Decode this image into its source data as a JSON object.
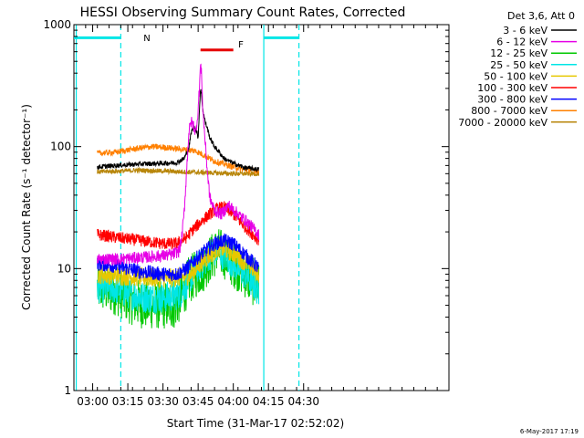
{
  "chart_data": {
    "type": "line",
    "title": "HESSI Observing Summary Count Rates, Corrected",
    "xlabel": "Start Time (31-Mar-17 02:52:02)",
    "ylabel": "Corrected Count Rate (s⁻¹ detector⁻¹)",
    "y_scale": "log",
    "ylim": [
      1,
      1000
    ],
    "y_ticks": [
      1,
      10,
      100,
      1000
    ],
    "y_tick_labels": [
      "1",
      "10",
      "100",
      "1000"
    ],
    "x_unit": "minutes",
    "xlim": [
      172,
      332
    ],
    "x_ticks": [
      180,
      195,
      210,
      225,
      240,
      255,
      270
    ],
    "x_tick_labels": [
      "03:00",
      "03:15",
      "03:30",
      "03:45",
      "04:00",
      "04:15",
      "04:30"
    ],
    "legend_title": "Det 3,6, Att 0",
    "legend_position": "right",
    "series": [
      {
        "name": "3 - 6 keV",
        "color": "#000000",
        "noise": 0.02,
        "points": [
          [
            182,
            68
          ],
          [
            190,
            70
          ],
          [
            200,
            72
          ],
          [
            210,
            73
          ],
          [
            216,
            74
          ],
          [
            219,
            80
          ],
          [
            221,
            96
          ],
          [
            222,
            130
          ],
          [
            223,
            145
          ],
          [
            224,
            140
          ],
          [
            225,
            118
          ],
          [
            225.5,
            190
          ],
          [
            226,
            300
          ],
          [
            226.5,
            260
          ],
          [
            227,
            200
          ],
          [
            228,
            160
          ],
          [
            229,
            140
          ],
          [
            230,
            118
          ],
          [
            232,
            100
          ],
          [
            234,
            90
          ],
          [
            236,
            80
          ],
          [
            240,
            73
          ],
          [
            245,
            67
          ],
          [
            251,
            65
          ]
        ]
      },
      {
        "name": "6 - 12 keV",
        "color": "#e600e6",
        "noise": 0.05,
        "points": [
          [
            182,
            12
          ],
          [
            192,
            12
          ],
          [
            205,
            12.5
          ],
          [
            214,
            13
          ],
          [
            217,
            14
          ],
          [
            218,
            18
          ],
          [
            219,
            28
          ],
          [
            220,
            60
          ],
          [
            221,
            130
          ],
          [
            222,
            160
          ],
          [
            223,
            150
          ],
          [
            224,
            130
          ],
          [
            225,
            200
          ],
          [
            225.5,
            300
          ],
          [
            226,
            470
          ],
          [
            226.5,
            380
          ],
          [
            227,
            200
          ],
          [
            228,
            110
          ],
          [
            229,
            60
          ],
          [
            230,
            38
          ],
          [
            232,
            30
          ],
          [
            235,
            28
          ],
          [
            238,
            33
          ],
          [
            242,
            28
          ],
          [
            246,
            24
          ],
          [
            251,
            19
          ]
        ]
      },
      {
        "name": "12 - 25 keV",
        "color": "#00c800",
        "noise": 0.2,
        "points": [
          [
            182,
            7
          ],
          [
            190,
            6.5
          ],
          [
            196,
            5.5
          ],
          [
            202,
            5
          ],
          [
            210,
            5
          ],
          [
            215,
            5
          ],
          [
            218,
            6
          ],
          [
            221,
            8
          ],
          [
            224,
            9
          ],
          [
            227,
            10
          ],
          [
            230,
            12
          ],
          [
            233,
            14
          ],
          [
            236,
            13
          ],
          [
            240,
            11
          ],
          [
            245,
            9
          ],
          [
            251,
            7
          ]
        ]
      },
      {
        "name": "25 - 50 keV",
        "color": "#00e6e6",
        "noise": 0.13,
        "points": [
          [
            182,
            7
          ],
          [
            190,
            6.8
          ],
          [
            196,
            6.2
          ],
          [
            202,
            5.8
          ],
          [
            210,
            5.8
          ],
          [
            215,
            6
          ],
          [
            218,
            6.5
          ],
          [
            221,
            8
          ],
          [
            224,
            10
          ],
          [
            227,
            11
          ],
          [
            230,
            13
          ],
          [
            233,
            14
          ],
          [
            236,
            13
          ],
          [
            240,
            11
          ],
          [
            245,
            9
          ],
          [
            251,
            6.5
          ]
        ]
      },
      {
        "name": "50 - 100 keV",
        "color": "#e6c800",
        "noise": 0.08,
        "points": [
          [
            182,
            9
          ],
          [
            190,
            8.8
          ],
          [
            200,
            8.5
          ],
          [
            210,
            8.3
          ],
          [
            218,
            8.5
          ],
          [
            222,
            9
          ],
          [
            226,
            11
          ],
          [
            230,
            13
          ],
          [
            234,
            15
          ],
          [
            238,
            14
          ],
          [
            242,
            12.5
          ],
          [
            246,
            11
          ],
          [
            251,
            9
          ]
        ]
      },
      {
        "name": "100 - 300 keV",
        "color": "#ff0000",
        "noise": 0.05,
        "points": [
          [
            182,
            19
          ],
          [
            190,
            18
          ],
          [
            200,
            17
          ],
          [
            210,
            16
          ],
          [
            216,
            16
          ],
          [
            220,
            18
          ],
          [
            222,
            20
          ],
          [
            224,
            22
          ],
          [
            227,
            25
          ],
          [
            230,
            28
          ],
          [
            233,
            31
          ],
          [
            236,
            32
          ],
          [
            240,
            28
          ],
          [
            245,
            22
          ],
          [
            251,
            17
          ]
        ]
      },
      {
        "name": "300 - 800 keV",
        "color": "#0000ff",
        "noise": 0.06,
        "points": [
          [
            182,
            11
          ],
          [
            190,
            10.5
          ],
          [
            200,
            9.5
          ],
          [
            210,
            9
          ],
          [
            216,
            9
          ],
          [
            220,
            10
          ],
          [
            224,
            12
          ],
          [
            228,
            14
          ],
          [
            232,
            16
          ],
          [
            236,
            17
          ],
          [
            240,
            16
          ],
          [
            245,
            13
          ],
          [
            251,
            10
          ]
        ]
      },
      {
        "name": "800 - 7000 keV",
        "color": "#ff8000",
        "noise": 0.025,
        "points": [
          [
            182,
            88
          ],
          [
            190,
            90
          ],
          [
            198,
            96
          ],
          [
            205,
            100
          ],
          [
            212,
            98
          ],
          [
            218,
            95
          ],
          [
            224,
            92
          ],
          [
            228,
            84
          ],
          [
            232,
            76
          ],
          [
            236,
            72
          ],
          [
            240,
            68
          ],
          [
            245,
            65
          ],
          [
            251,
            63
          ]
        ]
      },
      {
        "name": "7000 - 20000 keV",
        "color": "#b8860b",
        "noise": 0.02,
        "points": [
          [
            182,
            62
          ],
          [
            200,
            64
          ],
          [
            220,
            62
          ],
          [
            240,
            60
          ],
          [
            251,
            60
          ]
        ]
      }
    ],
    "annotations": {
      "night_label": "N",
      "flare_label": "F",
      "night_color": "#00e6e6",
      "flare_color": "#e60000",
      "night_bars": [
        [
          172,
          192
        ],
        [
          253,
          268
        ]
      ],
      "night_level": 780,
      "flare_bar": [
        226,
        240
      ],
      "flare_level": 620,
      "saa_lines": [
        [
          173,
          "solid"
        ],
        [
          192,
          "dashed"
        ],
        [
          253,
          "solid"
        ],
        [
          268,
          "dashed"
        ]
      ]
    },
    "grid": false
  },
  "timestamp": "6-May-2017 17:19"
}
